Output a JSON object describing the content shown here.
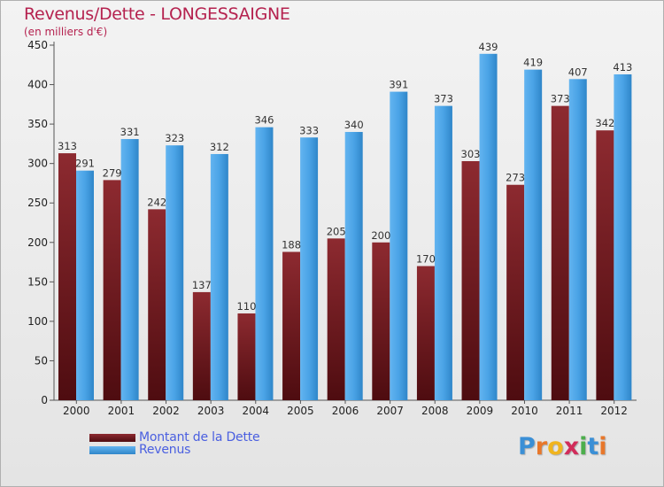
{
  "header": {
    "title": "Revenus/Dette - LONGESSAIGNE",
    "subtitle": "(en milliers d'€)"
  },
  "colors": {
    "dette": "#7a1f24",
    "revenus": "#4aa3e6"
  },
  "chart_data": {
    "type": "bar",
    "categories": [
      "2000",
      "2001",
      "2002",
      "2003",
      "2004",
      "2005",
      "2006",
      "2007",
      "2008",
      "2009",
      "2010",
      "2011",
      "2012"
    ],
    "series": [
      {
        "name": "Montant de la Dette",
        "values": [
          313,
          279,
          242,
          137,
          110,
          188,
          205,
          200,
          170,
          303,
          273,
          373,
          342
        ]
      },
      {
        "name": "Revenus",
        "values": [
          291,
          331,
          323,
          312,
          346,
          333,
          340,
          391,
          373,
          439,
          419,
          407,
          413
        ]
      }
    ],
    "yticks": [
      0,
      50,
      100,
      150,
      200,
      250,
      300,
      350,
      400,
      450
    ],
    "ylim": [
      0,
      450
    ],
    "grid": false,
    "legend": "bottom-left"
  },
  "logo": {
    "letters": [
      "P",
      "r",
      "o",
      "x",
      "i",
      "t",
      "i"
    ],
    "colors": [
      "#3a8fd6",
      "#e8772a",
      "#f0b41e",
      "#d12c5a",
      "#4cae4c",
      "#3a8fd6",
      "#e8772a"
    ]
  }
}
